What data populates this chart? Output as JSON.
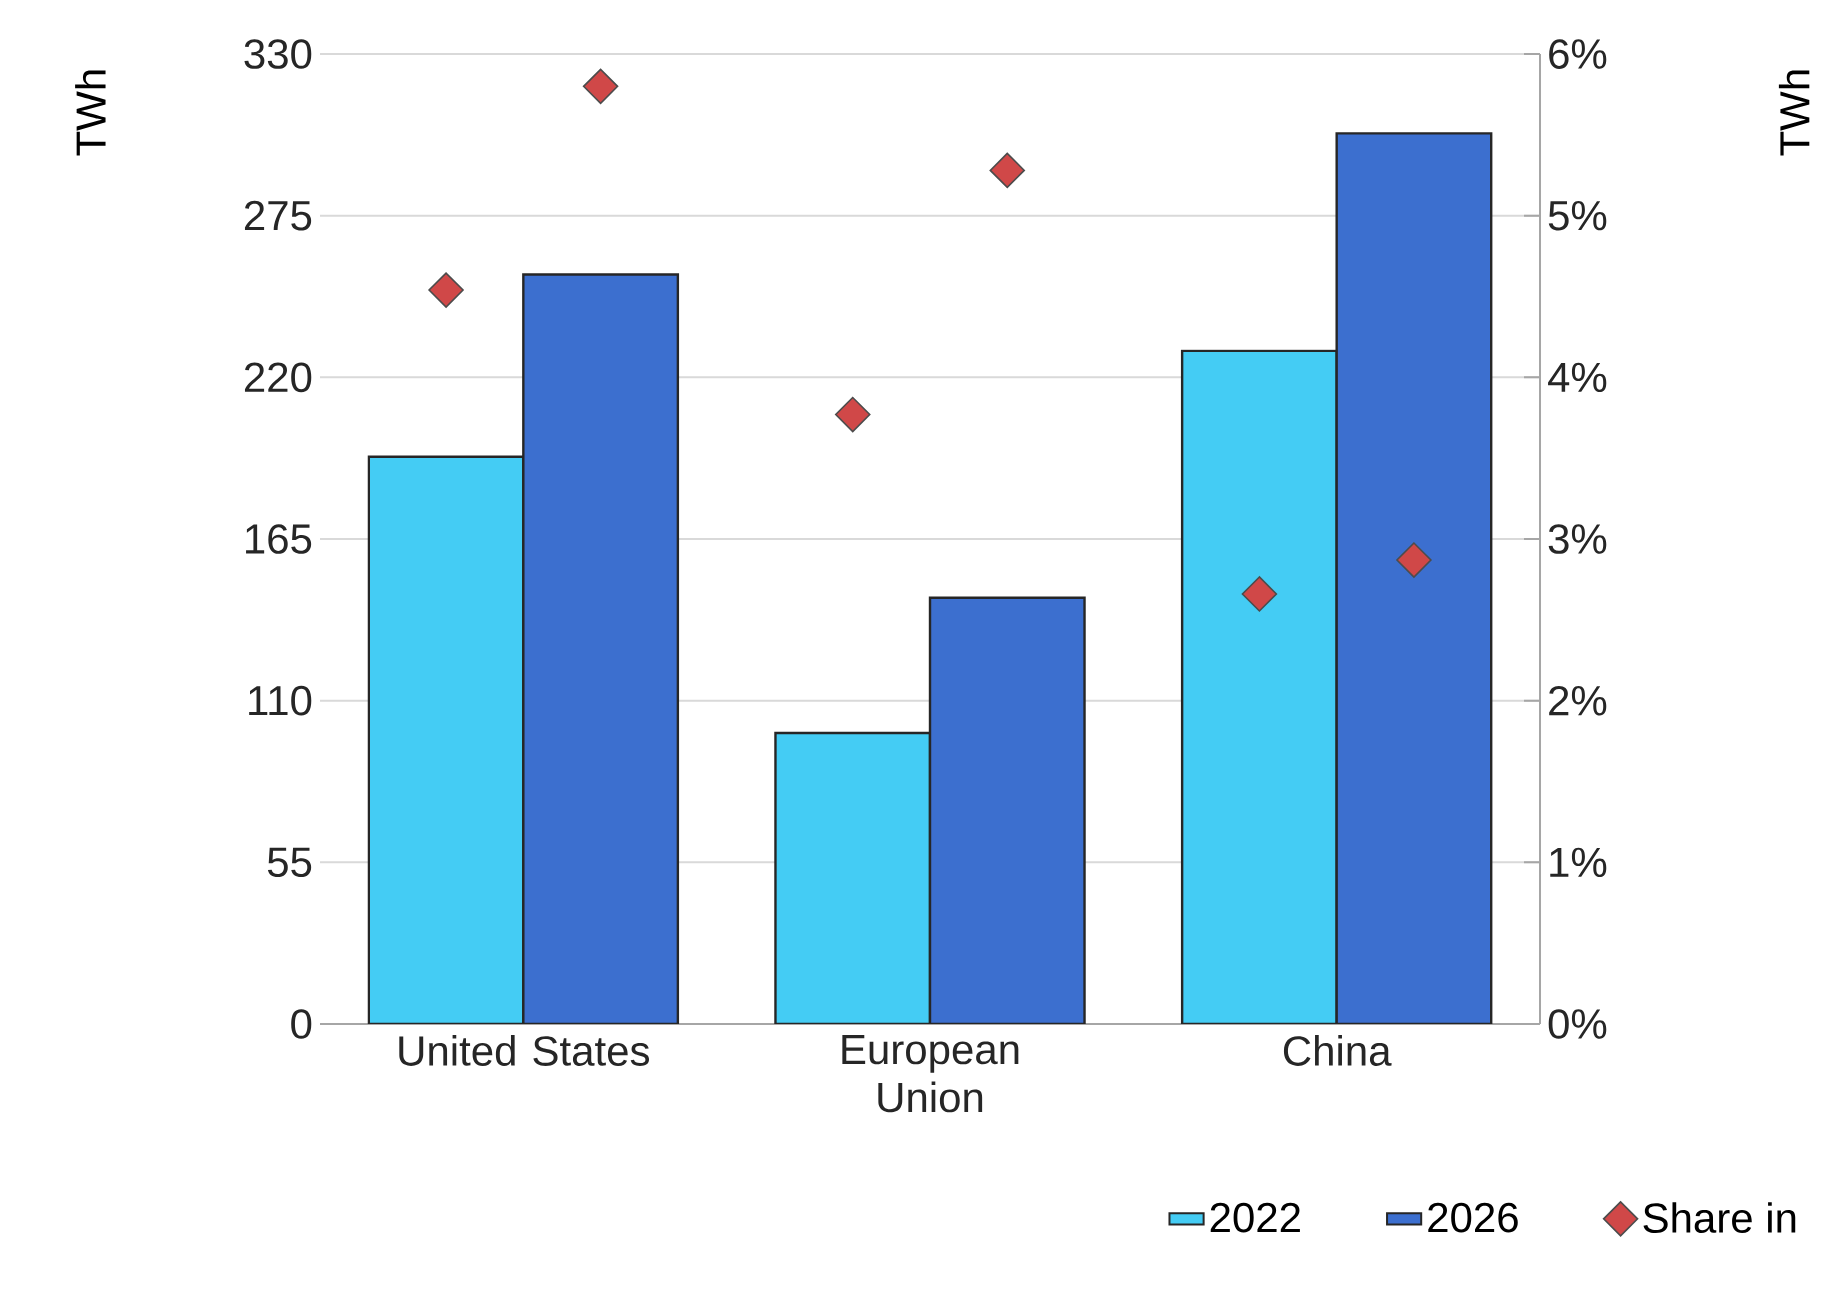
{
  "chart_data": {
    "type": "bar",
    "categories": [
      "United States",
      "European Union",
      "China"
    ],
    "series": [
      {
        "name": "2022",
        "color": "#44ccf4",
        "values": [
          193,
          99,
          229
        ]
      },
      {
        "name": "2026",
        "color": "#3c6fcf",
        "values": [
          255,
          145,
          303
        ]
      },
      {
        "name": "Share in",
        "type": "scatter",
        "axis": "y2",
        "color": "#d04848",
        "x": [
          "United States",
          "United States",
          "European Union",
          "European Union",
          "China",
          "China"
        ],
        "values": [
          4.54,
          5.8,
          3.77,
          5.28,
          2.66,
          2.87
        ]
      }
    ],
    "ylabel": "TWh",
    "y2label": "TWh",
    "ylim": [
      0,
      330
    ],
    "yticks": [
      0,
      55,
      110,
      165,
      220,
      275,
      330
    ],
    "y2lim": [
      0,
      6
    ],
    "y2ticks": [
      {
        "value": 0,
        "label": "0%"
      },
      {
        "value": 1,
        "label": "1%"
      },
      {
        "value": 2,
        "label": "2%"
      },
      {
        "value": 3,
        "label": "3%"
      },
      {
        "value": 4,
        "label": "4%"
      },
      {
        "value": 5,
        "label": "5%"
      },
      {
        "value": 6,
        "label": "6%"
      }
    ],
    "grid": "y",
    "legend": "bottom",
    "marker": "diamond"
  }
}
